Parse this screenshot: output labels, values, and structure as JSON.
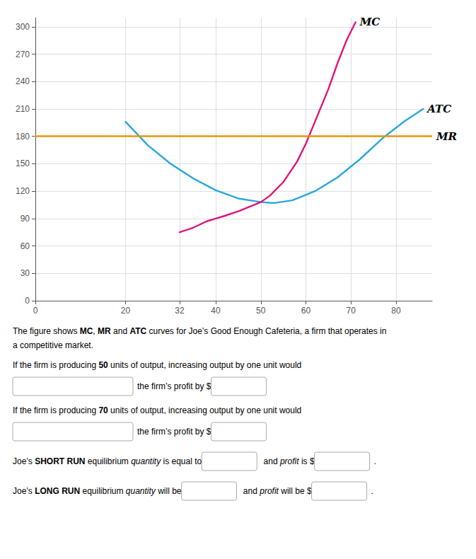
{
  "chart_data": {
    "type": "line",
    "xlim": [
      0,
      88
    ],
    "xticks": [
      0,
      20,
      32,
      40,
      50,
      60,
      70,
      80
    ],
    "ylim": [
      0,
      310
    ],
    "yticks": [
      0,
      30,
      60,
      90,
      120,
      150,
      180,
      210,
      240,
      270,
      300
    ],
    "grid": true,
    "series": [
      {
        "name": "ATC",
        "color": "#29a8dc",
        "x": [
          20,
          25,
          30,
          35,
          40,
          45,
          50,
          53,
          57,
          62,
          67,
          72,
          77,
          82,
          86
        ],
        "values": [
          196,
          170,
          150,
          134,
          121,
          112,
          108,
          107,
          110,
          120,
          135,
          155,
          178,
          197,
          210
        ]
      },
      {
        "name": "MC",
        "color": "#e0147a",
        "x": [
          32,
          35,
          38,
          40,
          42,
          45,
          48,
          50,
          52,
          55,
          58,
          60,
          62,
          65,
          67,
          69,
          71
        ],
        "values": [
          75,
          80,
          87,
          90,
          93,
          98,
          104,
          108,
          115,
          130,
          152,
          172,
          196,
          232,
          260,
          285,
          305
        ]
      },
      {
        "name": "MR",
        "type": "hline",
        "color": "#e8960a",
        "values": [
          180
        ]
      }
    ],
    "annotations": [
      [
        {
          "text": "The figure shows "
        },
        {
          "text": "MC",
          "style": "bold"
        },
        {
          "text": ", "
        },
        {
          "text": "MR",
          "style": "bold"
        },
        {
          "text": " and "
        },
        {
          "text": "ATC",
          "style": "bold"
        },
        {
          "text": " curves for Joe’s Good Enough Cafeteria, a firm that operates in"
        }
      ],
      [
        {
          "text": "a competitive market."
        }
      ],
      [
        {
          "text": "If the firm is producing "
        },
        {
          "text": "50",
          "style": "bold"
        },
        {
          "text": " units of output, increasing output by one unit would"
        }
      ],
      [
        null,
        {
          "text": "the firm’s profit by $"
        },
        null
      ],
      [
        {
          "text": "If the firm is producing "
        },
        {
          "text": "70",
          "style": "bold"
        },
        {
          "text": " units of output, increasing output by one unit would"
        }
      ],
      [
        null,
        {
          "text": "the firm’s profit by $"
        },
        null
      ],
      [
        {
          "text": "Joe’s "
        },
        {
          "text": "SHORT RUN",
          "style": "bold"
        },
        {
          "text": " equilibrium "
        },
        {
          "text": "quantity",
          "style": "italic"
        },
        {
          "text": " is equal to"
        },
        null,
        {
          "text": " and "
        },
        {
          "text": "profit",
          "style": "italic"
        },
        {
          "text": " is $"
        },
        null,
        {
          "text": "."
        }
      ],
      [
        {
          "text": "Joe’s "
        },
        {
          "text": "LONG RUN",
          "style": "bold"
        },
        {
          "text": " equilibrium "
        },
        {
          "text": "quantity",
          "style": "italic"
        },
        {
          "text": " will be"
        },
        null,
        {
          "text": " and "
        },
        {
          "text": "profit",
          "style": "italic"
        },
        {
          "text": " will be $"
        },
        null,
        {
          "text": "."
        }
      ]
    ]
  }
}
